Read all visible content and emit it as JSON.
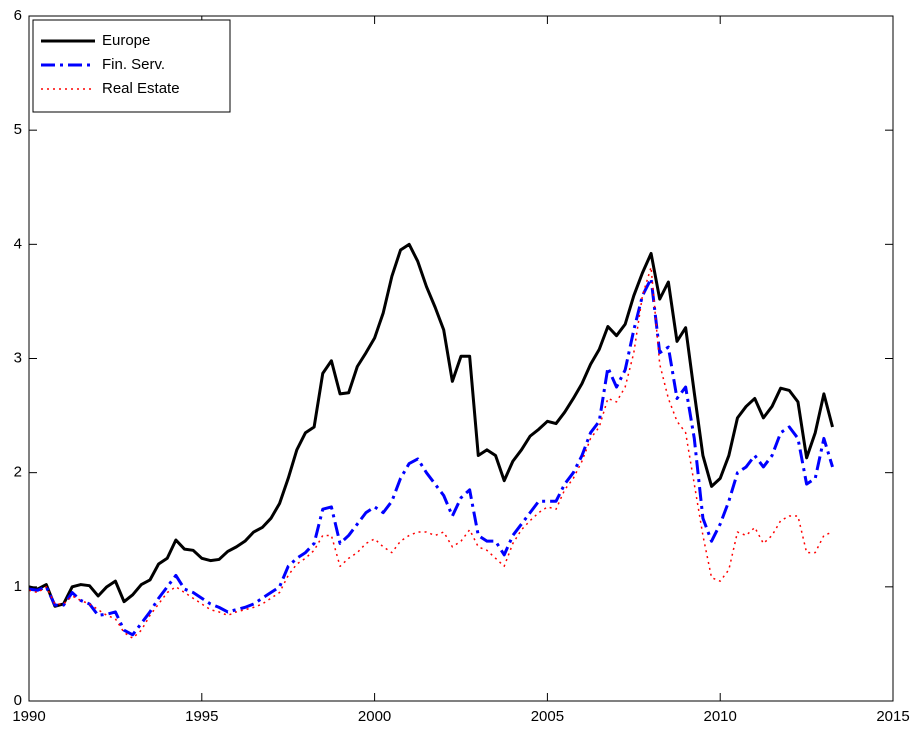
{
  "chart_data": {
    "type": "line",
    "x": [
      1990,
      1990.25,
      1990.5,
      1990.75,
      1991,
      1991.25,
      1991.5,
      1991.75,
      1992,
      1992.25,
      1992.5,
      1992.75,
      1993,
      1993.25,
      1993.5,
      1993.75,
      1994,
      1994.25,
      1994.5,
      1994.75,
      1995,
      1995.25,
      1995.5,
      1995.75,
      1996,
      1996.25,
      1996.5,
      1996.75,
      1997,
      1997.25,
      1997.5,
      1997.75,
      1998,
      1998.25,
      1998.5,
      1998.75,
      1999,
      1999.25,
      1999.5,
      1999.75,
      2000,
      2000.25,
      2000.5,
      2000.75,
      2001,
      2001.25,
      2001.5,
      2001.75,
      2002,
      2002.25,
      2002.5,
      2002.75,
      2003,
      2003.25,
      2003.5,
      2003.75,
      2004,
      2004.25,
      2004.5,
      2004.75,
      2005,
      2005.25,
      2005.5,
      2005.75,
      2006,
      2006.25,
      2006.5,
      2006.75,
      2007,
      2007.25,
      2007.5,
      2007.75,
      2008,
      2008.25,
      2008.5,
      2008.75,
      2009,
      2009.25,
      2009.5,
      2009.75,
      2010,
      2010.25,
      2010.5,
      2010.75,
      2011,
      2011.25,
      2011.5,
      2011.75,
      2012,
      2012.25,
      2012.5,
      2012.75,
      2013,
      2013.25
    ],
    "series": [
      {
        "name": "Europe",
        "color": "#000000",
        "style": "solid",
        "values": [
          1.0,
          0.98,
          1.02,
          0.83,
          0.85,
          1.0,
          1.02,
          1.01,
          0.92,
          1.0,
          1.05,
          0.87,
          0.93,
          1.02,
          1.06,
          1.2,
          1.25,
          1.41,
          1.33,
          1.32,
          1.25,
          1.23,
          1.24,
          1.31,
          1.35,
          1.4,
          1.48,
          1.52,
          1.6,
          1.73,
          1.95,
          2.2,
          2.35,
          2.4,
          2.87,
          2.98,
          2.69,
          2.7,
          2.93,
          3.05,
          3.18,
          3.4,
          3.72,
          3.95,
          4.0,
          3.85,
          3.63,
          3.45,
          3.25,
          2.8,
          3.02,
          3.02,
          2.15,
          2.2,
          2.15,
          1.93,
          2.1,
          2.2,
          2.32,
          2.38,
          2.45,
          2.43,
          2.53,
          2.65,
          2.78,
          2.95,
          3.08,
          3.28,
          3.2,
          3.3,
          3.55,
          3.75,
          3.92,
          3.52,
          3.67,
          3.15,
          3.27,
          2.7,
          2.15,
          1.88,
          1.95,
          2.15,
          2.48,
          2.58,
          2.65,
          2.48,
          2.58,
          2.74,
          2.72,
          2.62,
          2.13,
          2.35,
          2.69,
          2.4
        ]
      },
      {
        "name": "Fin. Serv.",
        "color": "#0000ff",
        "style": "dashdot",
        "values": [
          0.98,
          0.97,
          1.0,
          0.84,
          0.84,
          0.95,
          0.88,
          0.85,
          0.75,
          0.76,
          0.78,
          0.62,
          0.58,
          0.68,
          0.78,
          0.9,
          1.0,
          1.1,
          0.98,
          0.95,
          0.9,
          0.85,
          0.82,
          0.78,
          0.8,
          0.82,
          0.85,
          0.9,
          0.95,
          1.0,
          1.18,
          1.25,
          1.3,
          1.38,
          1.68,
          1.7,
          1.38,
          1.45,
          1.55,
          1.65,
          1.7,
          1.65,
          1.75,
          1.95,
          2.08,
          2.12,
          2.0,
          1.9,
          1.8,
          1.62,
          1.78,
          1.85,
          1.45,
          1.4,
          1.4,
          1.28,
          1.45,
          1.55,
          1.65,
          1.75,
          1.75,
          1.75,
          1.9,
          2.0,
          2.15,
          2.35,
          2.45,
          2.92,
          2.75,
          2.9,
          3.25,
          3.55,
          3.7,
          3.05,
          3.1,
          2.65,
          2.75,
          2.3,
          1.6,
          1.4,
          1.55,
          1.75,
          2.0,
          2.05,
          2.15,
          2.05,
          2.15,
          2.35,
          2.4,
          2.3,
          1.9,
          1.95,
          2.3,
          2.05
        ]
      },
      {
        "name": "Real Estate",
        "color": "#ff0000",
        "style": "dotted",
        "values": [
          0.97,
          0.95,
          1.0,
          0.85,
          0.85,
          0.92,
          0.88,
          0.85,
          0.8,
          0.75,
          0.72,
          0.6,
          0.55,
          0.62,
          0.75,
          0.85,
          0.95,
          1.0,
          0.95,
          0.9,
          0.85,
          0.8,
          0.78,
          0.75,
          0.78,
          0.8,
          0.82,
          0.85,
          0.9,
          0.95,
          1.1,
          1.2,
          1.25,
          1.32,
          1.45,
          1.45,
          1.18,
          1.25,
          1.3,
          1.38,
          1.42,
          1.35,
          1.3,
          1.4,
          1.45,
          1.48,
          1.48,
          1.45,
          1.48,
          1.35,
          1.4,
          1.5,
          1.35,
          1.32,
          1.25,
          1.18,
          1.38,
          1.5,
          1.58,
          1.65,
          1.7,
          1.68,
          1.85,
          1.95,
          2.1,
          2.3,
          2.4,
          2.65,
          2.62,
          2.75,
          3.05,
          3.55,
          3.8,
          2.95,
          2.65,
          2.45,
          2.35,
          1.9,
          1.45,
          1.08,
          1.05,
          1.15,
          1.48,
          1.45,
          1.52,
          1.38,
          1.45,
          1.58,
          1.62,
          1.62,
          1.3,
          1.3,
          1.45,
          1.48
        ]
      }
    ],
    "xlim": [
      1990,
      2015
    ],
    "xticks": [
      1990,
      1995,
      2000,
      2005,
      2010,
      2015
    ],
    "ylim": [
      0,
      6
    ],
    "yticks": [
      0,
      1,
      2,
      3,
      4,
      5,
      6
    ],
    "legend": "upper left"
  }
}
